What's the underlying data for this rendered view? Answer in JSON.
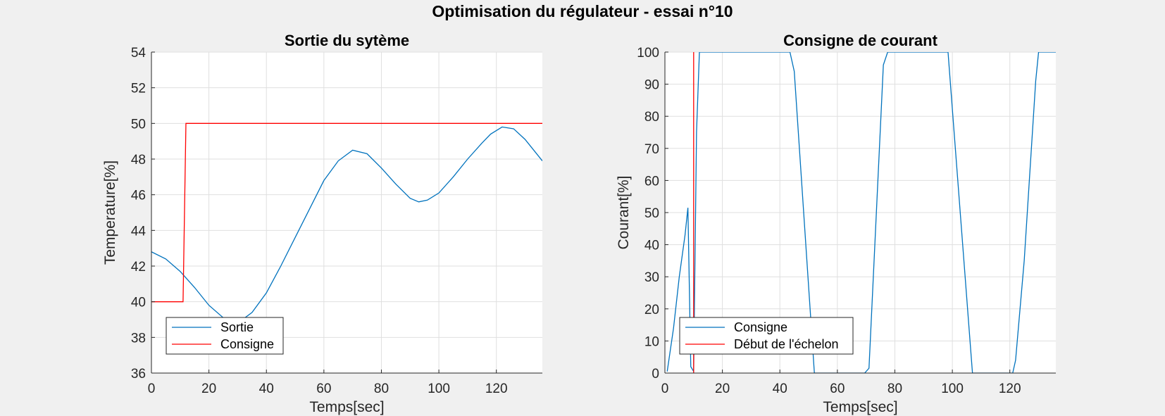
{
  "figure": {
    "suptitle": "Optimisation du régulateur - essai n°10",
    "background": "#f0f0f0"
  },
  "chart_data": [
    {
      "type": "line",
      "title": "Sortie du sytème",
      "xlabel": "Temps[sec]",
      "ylabel": "Temperature[%]",
      "xlim": [
        0,
        136
      ],
      "ylim": [
        36,
        54
      ],
      "xticks": [
        0,
        20,
        40,
        60,
        80,
        100,
        120
      ],
      "yticks": [
        36,
        38,
        40,
        42,
        44,
        46,
        48,
        50,
        52,
        54
      ],
      "grid": true,
      "legend_position": "bottom-left",
      "series": [
        {
          "name": "Sortie",
          "color": "#0072bd",
          "x": [
            0,
            5,
            10,
            15,
            20,
            25,
            30,
            35,
            40,
            45,
            50,
            55,
            60,
            65,
            70,
            75,
            80,
            85,
            90,
            93,
            96,
            100,
            105,
            110,
            115,
            118,
            122,
            126,
            130,
            133,
            136
          ],
          "y": [
            42.8,
            42.4,
            41.7,
            40.8,
            39.8,
            39.1,
            38.8,
            39.4,
            40.5,
            42.0,
            43.6,
            45.2,
            46.8,
            47.9,
            48.5,
            48.3,
            47.5,
            46.6,
            45.8,
            45.6,
            45.7,
            46.1,
            47.0,
            48.0,
            48.9,
            49.4,
            49.8,
            49.7,
            49.1,
            48.5,
            47.9
          ]
        },
        {
          "name": "Consigne",
          "color": "#ff0000",
          "x": [
            0,
            11,
            12,
            136
          ],
          "y": [
            40,
            40,
            50,
            50
          ]
        }
      ]
    },
    {
      "type": "line",
      "title": "Consigne de courant",
      "xlabel": "Temps[sec]",
      "ylabel": "Courant[%]",
      "xlim": [
        0,
        136
      ],
      "ylim": [
        0,
        100
      ],
      "xticks": [
        0,
        20,
        40,
        60,
        80,
        100,
        120
      ],
      "yticks": [
        0,
        10,
        20,
        30,
        40,
        50,
        60,
        70,
        80,
        90,
        100
      ],
      "grid": true,
      "legend_position": "bottom-left",
      "series": [
        {
          "name": "Consigne",
          "color": "#0072bd",
          "x": [
            0.8,
            3,
            5,
            7,
            8,
            9,
            10,
            11,
            12,
            43.5,
            45,
            52,
            69.5,
            71,
            76,
            77.5,
            98.5,
            99,
            107,
            121,
            122,
            125,
            129,
            130,
            136
          ],
          "y": [
            0.5,
            14,
            30,
            43,
            51.5,
            2,
            0.5,
            75,
            100,
            100,
            94,
            0,
            0,
            1.5,
            96,
            100,
            100,
            94,
            0,
            0,
            4,
            35,
            91,
            100,
            100
          ]
        },
        {
          "name": "Début de l'échelon",
          "color": "#ff0000",
          "x": [
            10,
            10
          ],
          "y": [
            0,
            100
          ]
        }
      ]
    }
  ]
}
